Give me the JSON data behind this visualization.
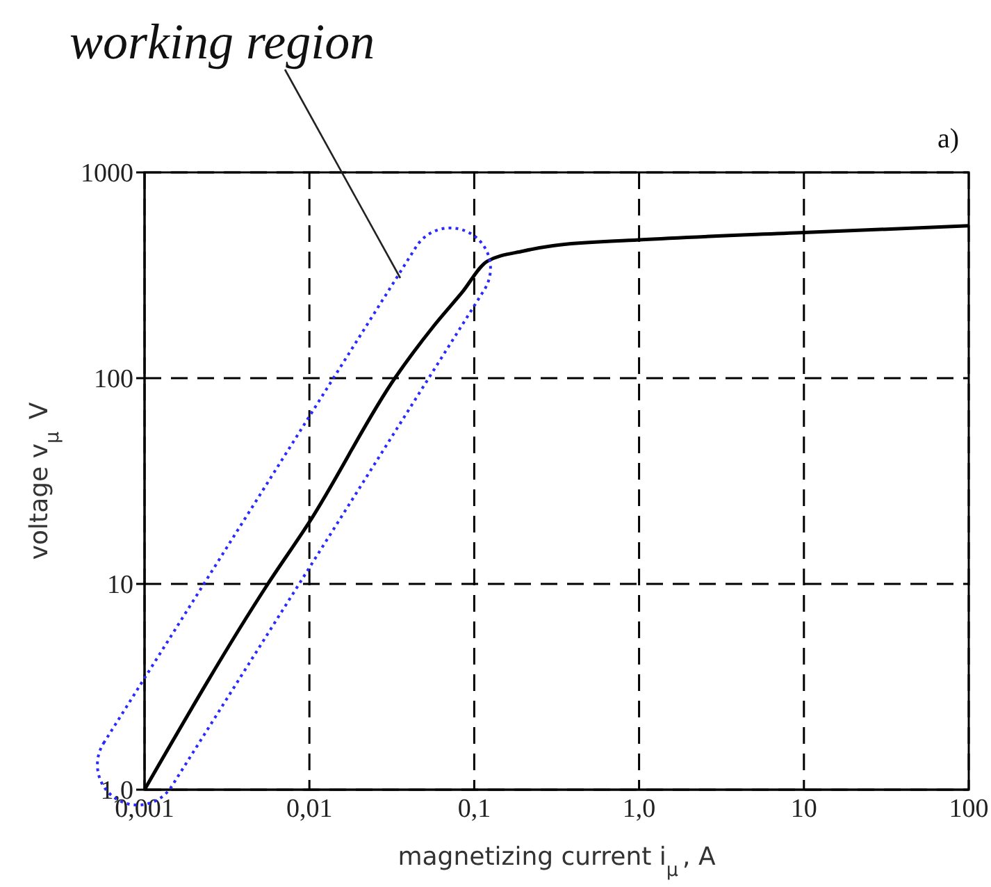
{
  "chart_data": {
    "type": "line",
    "xlabel": "magnetizing current i$_{μ}$, A",
    "ylabel": "voltage v$_{μ}$ V",
    "x": [
      0.001,
      0.0056,
      0.01,
      0.033,
      0.057,
      0.084,
      0.12,
      0.2,
      0.3,
      1,
      10,
      100
    ],
    "series": [
      {
        "color": "#000000",
        "values": [
          1,
          10,
          20,
          100,
          180,
          260,
          370,
          415,
          440,
          470,
          510,
          550
        ]
      }
    ],
    "log": "xy",
    "xlim": [
      0.001,
      100
    ],
    "ylim": [
      1,
      1000
    ],
    "xticks": [
      {
        "value": 0.001,
        "label": "0,001"
      },
      {
        "value": 0.01,
        "label": "0,01"
      },
      {
        "value": 0.1,
        "label": "0,1"
      },
      {
        "value": 1,
        "label": "1,0"
      },
      10,
      100
    ],
    "yticks": [
      {
        "value": 1,
        "label": "1,0"
      },
      10,
      100,
      1000
    ],
    "grid": true,
    "marker": "none",
    "line_style": "solid",
    "annotations": [
      "working region",
      "a)"
    ]
  }
}
